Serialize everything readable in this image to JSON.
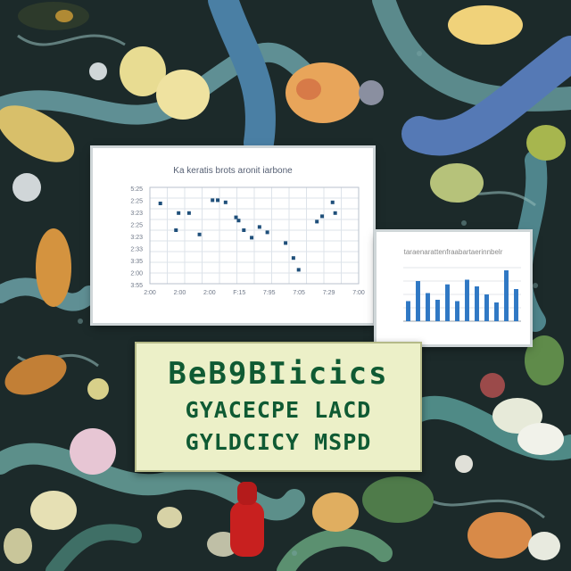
{
  "colors": {
    "background": "#1c2a2a",
    "sign_text": "#0f5a33",
    "sign_paper": "#ecf0c8",
    "scatter_point": "#1f4f7a",
    "bar_fill": "#2f78c4"
  },
  "scatter_chart": {
    "title": "Ka keratis brots aronit iarbone",
    "chart_data": {
      "type": "scatter",
      "x_ticks": [
        "2:00",
        "2:00",
        "2:00",
        "F:15",
        "7:95",
        "7:05",
        "7:29",
        "7:00"
      ],
      "y_ticks": [
        "5:25",
        "2:25",
        "3:23",
        "2:25",
        "3:23",
        "2:33",
        "3:35",
        "2:00",
        "3:55"
      ],
      "xlabel": "",
      "ylabel": "",
      "xlim": [
        0,
        8
      ],
      "ylim": [
        0,
        9
      ],
      "points": [
        {
          "x": 0.4,
          "y": 7.5
        },
        {
          "x": 1.0,
          "y": 5.0
        },
        {
          "x": 1.1,
          "y": 6.6
        },
        {
          "x": 1.5,
          "y": 6.6
        },
        {
          "x": 1.9,
          "y": 4.6
        },
        {
          "x": 2.4,
          "y": 7.8
        },
        {
          "x": 2.6,
          "y": 7.8
        },
        {
          "x": 2.9,
          "y": 7.6
        },
        {
          "x": 3.3,
          "y": 6.2
        },
        {
          "x": 3.4,
          "y": 5.9
        },
        {
          "x": 3.6,
          "y": 5.0
        },
        {
          "x": 3.9,
          "y": 4.3
        },
        {
          "x": 4.2,
          "y": 5.3
        },
        {
          "x": 4.5,
          "y": 4.8
        },
        {
          "x": 5.2,
          "y": 3.8
        },
        {
          "x": 5.5,
          "y": 2.4
        },
        {
          "x": 5.7,
          "y": 1.3
        },
        {
          "x": 6.4,
          "y": 5.8
        },
        {
          "x": 6.6,
          "y": 6.3
        },
        {
          "x": 7.0,
          "y": 7.6
        },
        {
          "x": 7.1,
          "y": 6.6
        }
      ]
    }
  },
  "bar_chart": {
    "title": "taraenarattenfraabartaerinnbelr",
    "chart_data": {
      "type": "bar",
      "values": [
        30,
        60,
        42,
        32,
        55,
        30,
        62,
        52,
        40,
        28,
        76,
        48
      ],
      "ylim": [
        0,
        80
      ]
    }
  },
  "sign": {
    "line1": "BeB9BIicics",
    "line2": "GYACECPE LACD",
    "line3": "GYLDCICY MSPD"
  }
}
